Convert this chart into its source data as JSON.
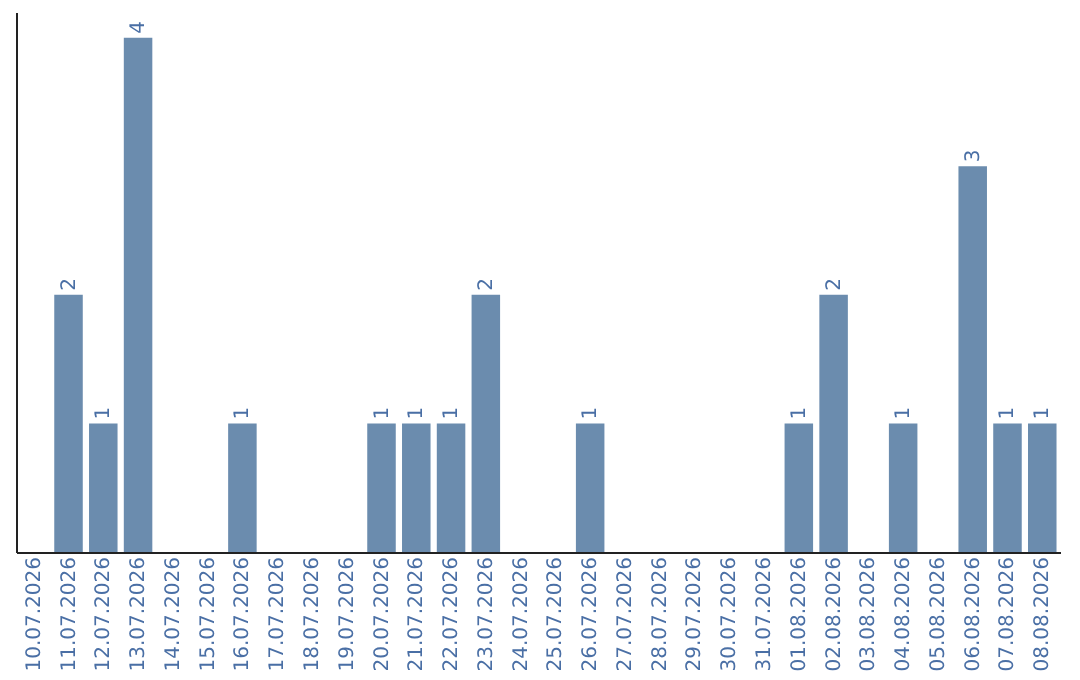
{
  "chart_data": {
    "type": "bar",
    "categories": [
      "10.07.2026",
      "11.07.2026",
      "12.07.2026",
      "13.07.2026",
      "14.07.2026",
      "15.07.2026",
      "16.07.2026",
      "17.07.2026",
      "18.07.2026",
      "19.07.2026",
      "20.07.2026",
      "21.07.2026",
      "22.07.2026",
      "23.07.2026",
      "24.07.2026",
      "25.07.2026",
      "26.07.2026",
      "27.07.2026",
      "28.07.2026",
      "29.07.2026",
      "30.07.2026",
      "31.07.2026",
      "01.08.2026",
      "02.08.2026",
      "03.08.2026",
      "04.08.2026",
      "05.08.2026",
      "06.08.2026",
      "07.08.2026",
      "08.08.2026"
    ],
    "values": [
      null,
      2,
      1,
      4,
      null,
      null,
      1,
      null,
      null,
      null,
      1,
      1,
      1,
      2,
      null,
      null,
      1,
      null,
      null,
      null,
      null,
      null,
      1,
      2,
      null,
      1,
      null,
      3,
      1,
      1
    ],
    "color": "#6b8cae",
    "ylim": [
      0,
      4.2
    ],
    "data_labels": true,
    "tick_labels": "x",
    "grid": false
  }
}
